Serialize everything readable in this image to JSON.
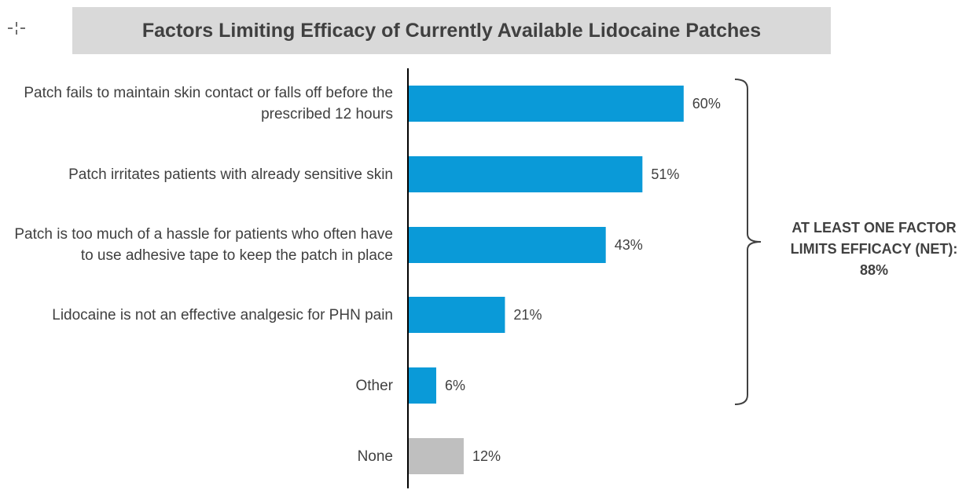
{
  "title": "Factors Limiting Efficacy of Currently Available Lidocaine Patches",
  "net_annotation": {
    "line1": "AT LEAST ONE FACTOR",
    "line2": "LIMITS EFFICACY (NET):",
    "line3": "88%"
  },
  "colors": {
    "bar_primary": "#0a9ad8",
    "bar_none": "#bfbfbf",
    "axis": "#000000",
    "title_bg": "#d9d9d9",
    "text": "#404040"
  },
  "icons": {
    "move": "move-crosshair-icon"
  },
  "chart_data": {
    "type": "bar",
    "orientation": "horizontal",
    "title": "Factors Limiting Efficacy of Currently Available Lidocaine Patches",
    "xlabel": "",
    "ylabel": "",
    "xlim": [
      0,
      100
    ],
    "grid": false,
    "categories": [
      "Patch fails to maintain skin contact or falls off before the prescribed 12 hours",
      "Patch irritates patients with already sensitive skin",
      "Patch is too much of a hassle for patients who often have to use adhesive tape to keep the patch in place",
      "Lidocaine is not an effective analgesic for PHN pain",
      "Other",
      "None"
    ],
    "category_lines": [
      [
        "Patch fails to maintain skin contact or falls off before the",
        "prescribed 12 hours"
      ],
      [
        "Patch irritates patients with already sensitive skin"
      ],
      [
        "Patch is too much of a hassle for patients who often have",
        "to use adhesive tape to keep the patch in place"
      ],
      [
        "Lidocaine is not an effective analgesic for PHN pain"
      ],
      [
        "Other"
      ],
      [
        "None"
      ]
    ],
    "values": [
      60,
      51,
      43,
      21,
      6,
      12
    ],
    "value_labels": [
      "60%",
      "51%",
      "43%",
      "21%",
      "6%",
      "12%"
    ],
    "bar_colors": [
      "#0a9ad8",
      "#0a9ad8",
      "#0a9ad8",
      "#0a9ad8",
      "#0a9ad8",
      "#bfbfbf"
    ],
    "bracket_covers": [
      "Patch fails to maintain skin contact or falls off before the prescribed 12 hours",
      "Other"
    ],
    "net_value": 88
  }
}
